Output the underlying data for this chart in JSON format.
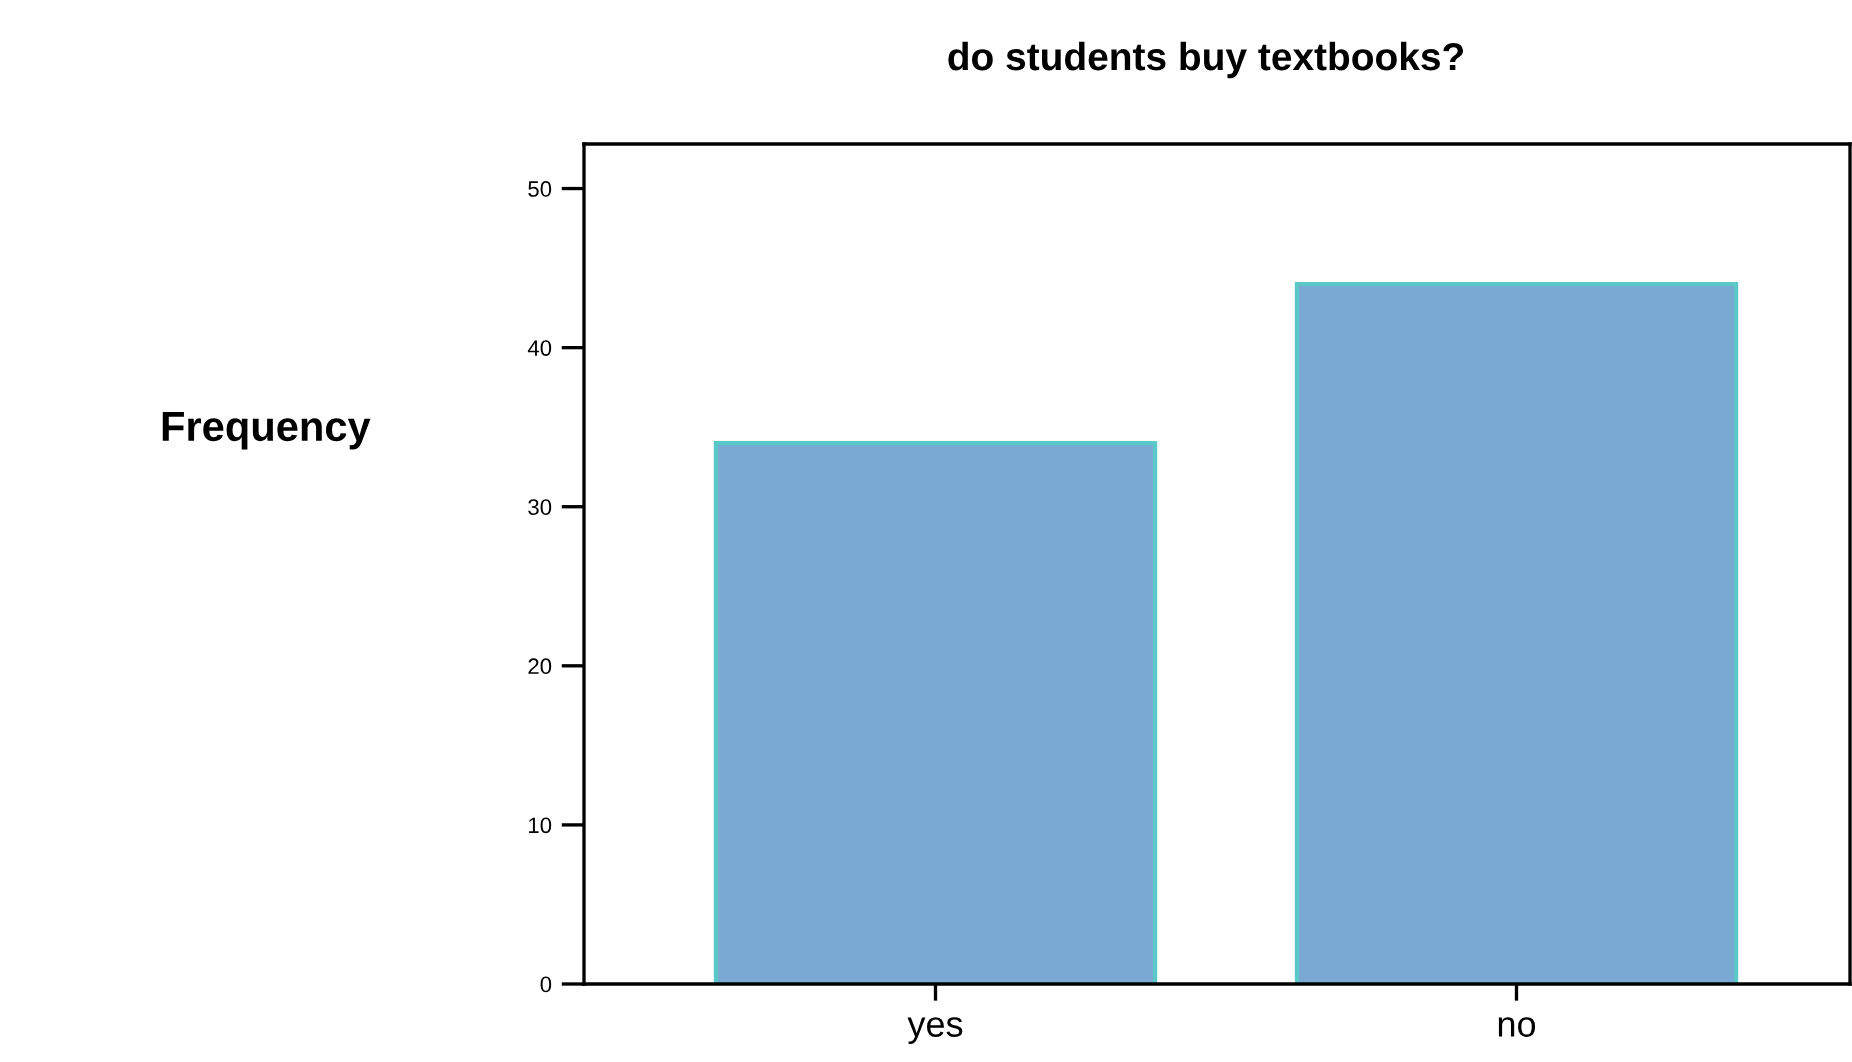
{
  "chart_data": {
    "type": "bar",
    "title": "do students buy textbooks?",
    "ylabel": "Frequency",
    "categories": [
      "yes",
      "no"
    ],
    "series": [
      {
        "color": "#7aaad4",
        "values": [
          34,
          44
        ]
      }
    ],
    "ylim": [
      0,
      52.8
    ],
    "yticks": [
      0,
      10,
      20,
      30,
      40,
      50
    ],
    "grid": false,
    "legend": false
  }
}
